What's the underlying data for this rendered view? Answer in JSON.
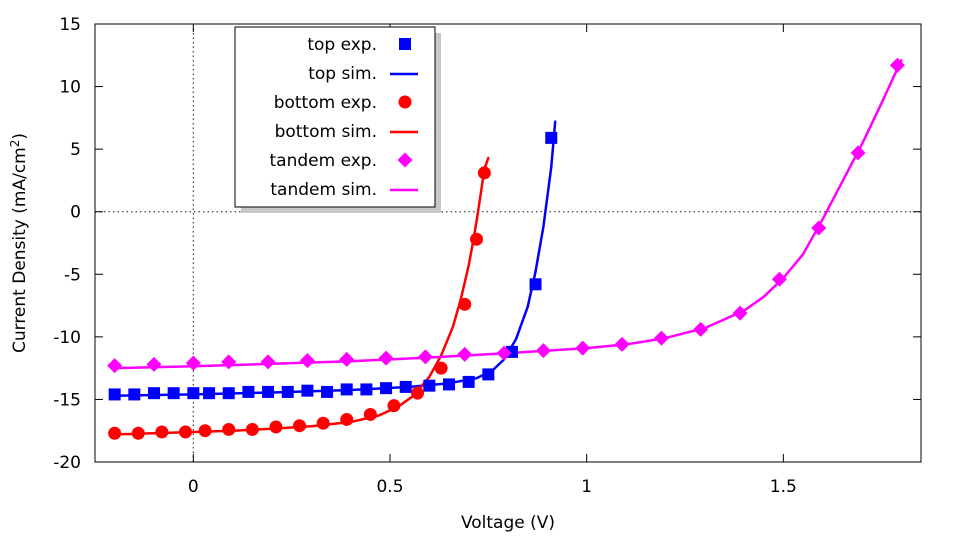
{
  "chart_data": {
    "type": "scatter",
    "title": "",
    "xlabel": "Voltage (V)",
    "ylabel": "Current Density (mA/cm",
    "ylabel_superscript": "2",
    "ylabel_suffix": ")",
    "xlim": [
      -0.25,
      1.85
    ],
    "ylim": [
      -20,
      15
    ],
    "xticks": [
      0,
      0.5,
      1,
      1.5
    ],
    "xtick_labels": [
      "0",
      "0.5",
      "1",
      "1.5"
    ],
    "yticks": [
      -20,
      -15,
      -10,
      -5,
      0,
      5,
      10,
      15
    ],
    "ytick_labels": [
      "-20",
      "-15",
      "-10",
      "-5",
      "0",
      "5",
      "10",
      "15"
    ],
    "zero_lines": true,
    "legend_position": "top-left",
    "series": [
      {
        "name": "top exp.",
        "kind": "markers",
        "marker": "square",
        "color": "#0000ff",
        "x": [
          -0.2,
          -0.15,
          -0.1,
          -0.05,
          0,
          0.04,
          0.09,
          0.14,
          0.19,
          0.24,
          0.29,
          0.34,
          0.39,
          0.44,
          0.49,
          0.54,
          0.6,
          0.65,
          0.7,
          0.75,
          0.81,
          0.87,
          0.91
        ],
        "y": [
          -14.6,
          -14.6,
          -14.5,
          -14.5,
          -14.5,
          -14.5,
          -14.5,
          -14.4,
          -14.4,
          -14.4,
          -14.3,
          -14.4,
          -14.2,
          -14.2,
          -14.1,
          -14.0,
          -13.9,
          -13.8,
          -13.6,
          -13.0,
          -11.2,
          -5.8,
          5.9
        ]
      },
      {
        "name": "top sim.",
        "kind": "line",
        "color": "#0000ff",
        "x": [
          -0.2,
          0,
          0.2,
          0.4,
          0.55,
          0.65,
          0.72,
          0.76,
          0.79,
          0.82,
          0.85,
          0.87,
          0.89,
          0.91,
          0.92
        ],
        "y": [
          -14.7,
          -14.6,
          -14.45,
          -14.25,
          -14.0,
          -13.7,
          -13.3,
          -12.7,
          -11.8,
          -10.2,
          -7.6,
          -4.8,
          -1.2,
          3.6,
          7.2
        ]
      },
      {
        "name": "bottom exp.",
        "kind": "markers",
        "marker": "circle",
        "color": "#ff0000",
        "x": [
          -0.2,
          -0.14,
          -0.08,
          -0.02,
          0.03,
          0.09,
          0.15,
          0.21,
          0.27,
          0.33,
          0.39,
          0.45,
          0.51,
          0.57,
          0.63,
          0.69,
          0.72,
          0.74
        ],
        "y": [
          -17.7,
          -17.7,
          -17.6,
          -17.6,
          -17.5,
          -17.4,
          -17.4,
          -17.2,
          -17.1,
          -16.9,
          -16.6,
          -16.2,
          -15.5,
          -14.5,
          -12.5,
          -7.4,
          -2.2,
          3.1
        ]
      },
      {
        "name": "bottom sim.",
        "kind": "line",
        "color": "#ff0000",
        "x": [
          -0.2,
          -0.1,
          0,
          0.1,
          0.2,
          0.3,
          0.4,
          0.47,
          0.52,
          0.56,
          0.6,
          0.63,
          0.66,
          0.68,
          0.7,
          0.71,
          0.72,
          0.73,
          0.74,
          0.75
        ],
        "y": [
          -17.8,
          -17.7,
          -17.6,
          -17.5,
          -17.35,
          -17.15,
          -16.8,
          -16.3,
          -15.6,
          -14.7,
          -13.2,
          -11.5,
          -9.2,
          -7.0,
          -4.3,
          -2.6,
          -0.8,
          1.3,
          3.4,
          4.3
        ]
      },
      {
        "name": "tandem exp.",
        "kind": "markers",
        "marker": "diamond",
        "color": "#ff00ff",
        "x": [
          -0.2,
          -0.1,
          0,
          0.09,
          0.19,
          0.29,
          0.39,
          0.49,
          0.59,
          0.69,
          0.79,
          0.89,
          0.99,
          1.09,
          1.19,
          1.29,
          1.39,
          1.49,
          1.59,
          1.69,
          1.79
        ],
        "y": [
          -12.3,
          -12.2,
          -12.1,
          -12.0,
          -12.0,
          -11.9,
          -11.8,
          -11.7,
          -11.6,
          -11.4,
          -11.3,
          -11.1,
          -10.9,
          -10.6,
          -10.1,
          -9.4,
          -8.1,
          -5.4,
          -1.3,
          4.7,
          11.7
        ]
      },
      {
        "name": "tandem sim.",
        "kind": "line",
        "color": "#ff00ff",
        "x": [
          -0.2,
          0,
          0.2,
          0.4,
          0.6,
          0.8,
          1.0,
          1.1,
          1.2,
          1.3,
          1.4,
          1.45,
          1.5,
          1.55,
          1.6,
          1.65,
          1.7,
          1.75,
          1.8
        ],
        "y": [
          -12.5,
          -12.35,
          -12.15,
          -11.95,
          -11.65,
          -11.3,
          -10.9,
          -10.6,
          -10.1,
          -9.3,
          -7.9,
          -6.8,
          -5.3,
          -3.4,
          -0.6,
          2.4,
          5.4,
          8.7,
          12.1
        ]
      }
    ]
  }
}
